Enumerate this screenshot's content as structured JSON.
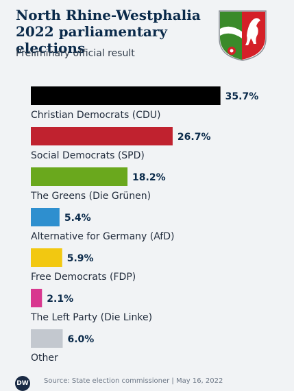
{
  "header": {
    "title": "North Rhine-Westphalia 2022 parliamentary elections",
    "subtitle": "Preliminary official result"
  },
  "crest": {
    "icon": "nrw-coat-of-arms-icon"
  },
  "chart_data": {
    "type": "bar",
    "orientation": "horizontal",
    "categories": [
      "Christian Democrats (CDU)",
      "Social Democrats (SPD)",
      "The Greens (Die Grünen)",
      "Alternative for Germany (AfD)",
      "Free Democrats (FDP)",
      "The Left Party (Die Linke)",
      "Other"
    ],
    "values": [
      35.7,
      26.7,
      18.2,
      5.4,
      5.9,
      2.1,
      6.0
    ],
    "value_labels": [
      "35.7%",
      "26.7%",
      "18.2%",
      "5.4%",
      "5.9%",
      "2.1%",
      "6.0%"
    ],
    "colors": [
      "#000000",
      "#c0222f",
      "#6aa81d",
      "#2e8fcf",
      "#f2c811",
      "#d8378f",
      "#c3c8cf"
    ],
    "xlim": [
      0,
      40
    ],
    "grid": false,
    "legend": "none"
  },
  "footer": {
    "logo_text": "DW",
    "source": "Source: State election commissioner | May 16, 2022"
  }
}
